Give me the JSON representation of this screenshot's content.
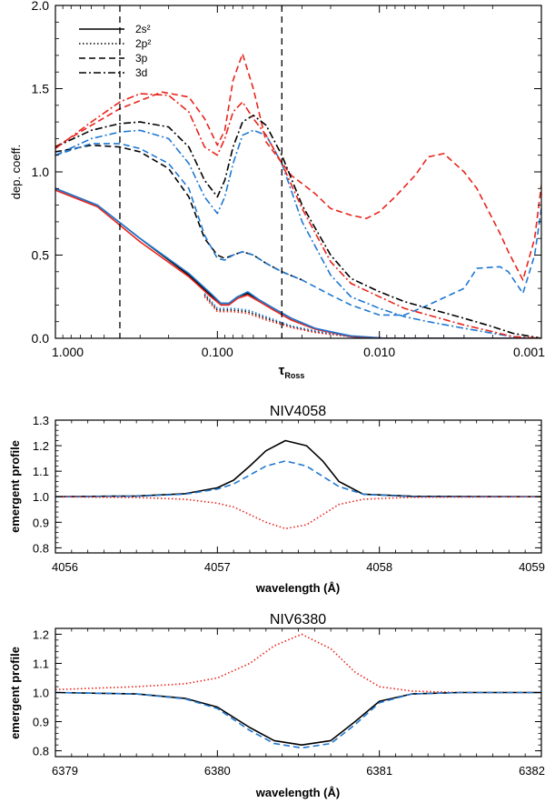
{
  "colors": {
    "black": "#000000",
    "red": "#e8241c",
    "blue": "#1f78d1",
    "axis": "#000000"
  },
  "chart_data": [
    {
      "type": "line",
      "title": "",
      "xlabel": "τ",
      "xlabel_sub": "Ross",
      "ylabel": "dep. coeff.",
      "xscale": "log",
      "xlim": [
        1.0,
        0.001
      ],
      "ylim": [
        0.0,
        2.0
      ],
      "xticks": [
        1.0,
        0.1,
        0.01,
        0.001
      ],
      "xtick_labels": [
        "1.000",
        "0.100",
        "0.010",
        "0.001"
      ],
      "yticks": [
        0.0,
        0.5,
        1.0,
        1.5,
        2.0
      ],
      "ytick_labels": [
        "0.0",
        "0.5",
        "1.0",
        "1.5",
        "2.0"
      ],
      "vlines": [
        0.4,
        0.04
      ],
      "legend": {
        "position": "top-left",
        "entries": [
          {
            "label": "2s²",
            "dash": "solid"
          },
          {
            "label": "2p²",
            "dash": "dotted"
          },
          {
            "label": "3p",
            "dash": "dashed"
          },
          {
            "label": "3d",
            "dash": "dashdot"
          }
        ]
      },
      "series": [
        {
          "name": "2s2 black",
          "color": "black",
          "dash": "solid",
          "x": [
            1,
            0.55,
            0.3,
            0.15,
            0.11,
            0.095,
            0.085,
            0.075,
            0.065,
            0.055,
            0.045,
            0.035,
            0.025,
            0.015,
            0.009,
            0.003,
            0.001
          ],
          "y": [
            0.9,
            0.8,
            0.6,
            0.38,
            0.26,
            0.21,
            0.21,
            0.25,
            0.27,
            0.23,
            0.18,
            0.12,
            0.06,
            0.01,
            0.0,
            0.0,
            0.0
          ]
        },
        {
          "name": "2s2 red",
          "color": "red",
          "dash": "solid",
          "x": [
            1,
            0.55,
            0.3,
            0.15,
            0.11,
            0.095,
            0.085,
            0.075,
            0.065,
            0.055,
            0.045,
            0.035,
            0.025,
            0.015,
            0.009,
            0.003,
            0.001
          ],
          "y": [
            0.89,
            0.79,
            0.58,
            0.37,
            0.25,
            0.2,
            0.2,
            0.24,
            0.26,
            0.22,
            0.17,
            0.11,
            0.055,
            0.01,
            0.0,
            0.0,
            0.0
          ]
        },
        {
          "name": "2s2 blue",
          "color": "blue",
          "dash": "solid",
          "x": [
            1,
            0.55,
            0.3,
            0.15,
            0.11,
            0.095,
            0.085,
            0.075,
            0.065,
            0.055,
            0.045,
            0.035,
            0.025,
            0.015,
            0.009,
            0.003,
            0.001
          ],
          "y": [
            0.9,
            0.8,
            0.6,
            0.39,
            0.27,
            0.21,
            0.21,
            0.25,
            0.28,
            0.23,
            0.18,
            0.12,
            0.06,
            0.015,
            0.0,
            0.0,
            0.0
          ]
        },
        {
          "name": "2p2 black",
          "color": "black",
          "dash": "dotted",
          "x": [
            0.12,
            0.1,
            0.08,
            0.065,
            0.05,
            0.035,
            0.025,
            0.015,
            0.009,
            0.003
          ],
          "y": [
            0.26,
            0.17,
            0.17,
            0.16,
            0.12,
            0.07,
            0.04,
            0.01,
            0.0,
            0.0
          ]
        },
        {
          "name": "2p2 red",
          "color": "red",
          "dash": "dotted",
          "x": [
            0.12,
            0.1,
            0.08,
            0.065,
            0.05,
            0.035,
            0.025,
            0.015,
            0.009,
            0.003
          ],
          "y": [
            0.25,
            0.16,
            0.16,
            0.15,
            0.11,
            0.065,
            0.035,
            0.01,
            0.0,
            0.0
          ]
        },
        {
          "name": "2p2 blue",
          "color": "blue",
          "dash": "dotted",
          "x": [
            0.12,
            0.1,
            0.08,
            0.065,
            0.05,
            0.035,
            0.025,
            0.015,
            0.009,
            0.003
          ],
          "y": [
            0.27,
            0.18,
            0.18,
            0.17,
            0.13,
            0.075,
            0.045,
            0.01,
            0.0,
            0.0
          ]
        },
        {
          "name": "3p black",
          "color": "black",
          "dash": "dashed",
          "x": [
            1,
            0.6,
            0.4,
            0.3,
            0.2,
            0.15,
            0.12,
            0.1,
            0.09,
            0.08,
            0.07,
            0.06,
            0.05,
            0.04,
            0.03
          ],
          "y": [
            1.12,
            1.16,
            1.15,
            1.12,
            1.02,
            0.85,
            0.6,
            0.5,
            0.48,
            0.5,
            0.52,
            0.5,
            0.45,
            0.4,
            0.35
          ]
        },
        {
          "name": "3p blue",
          "color": "blue",
          "dash": "dashed",
          "x": [
            1,
            0.6,
            0.4,
            0.3,
            0.2,
            0.15,
            0.12,
            0.1,
            0.09,
            0.08,
            0.07,
            0.06,
            0.05,
            0.04,
            0.03,
            0.02,
            0.015,
            0.01,
            0.007,
            0.005,
            0.003,
            0.0025,
            0.0018,
            0.0016,
            0.0013,
            0.0011,
            0.001
          ],
          "y": [
            1.1,
            1.17,
            1.17,
            1.14,
            1.05,
            0.9,
            0.62,
            0.48,
            0.47,
            0.5,
            0.52,
            0.5,
            0.45,
            0.4,
            0.35,
            0.26,
            0.2,
            0.14,
            0.14,
            0.2,
            0.3,
            0.42,
            0.43,
            0.4,
            0.27,
            0.5,
            0.78
          ]
        },
        {
          "name": "3p red",
          "color": "red",
          "dash": "dashed",
          "x": [
            1,
            0.6,
            0.4,
            0.22,
            0.15,
            0.12,
            0.1,
            0.09,
            0.08,
            0.07,
            0.06,
            0.05,
            0.035,
            0.025,
            0.02,
            0.015,
            0.012,
            0.01,
            0.008,
            0.006,
            0.005,
            0.004,
            0.003,
            0.0025,
            0.0018,
            0.0016,
            0.0013,
            0.0011,
            0.001
          ],
          "y": [
            1.15,
            1.28,
            1.38,
            1.48,
            1.45,
            1.32,
            1.16,
            1.25,
            1.55,
            1.71,
            1.5,
            1.18,
            0.98,
            0.87,
            0.78,
            0.74,
            0.72,
            0.76,
            0.85,
            0.98,
            1.09,
            1.11,
            1.0,
            0.9,
            0.63,
            0.52,
            0.35,
            0.6,
            0.92
          ]
        },
        {
          "name": "3d black",
          "color": "black",
          "dash": "dashdot",
          "x": [
            1,
            0.6,
            0.4,
            0.3,
            0.2,
            0.15,
            0.12,
            0.1,
            0.09,
            0.08,
            0.07,
            0.06,
            0.05,
            0.04,
            0.03,
            0.02,
            0.015,
            0.01,
            0.007,
            0.005,
            0.003,
            0.002,
            0.0015,
            0.001
          ],
          "y": [
            1.15,
            1.25,
            1.29,
            1.3,
            1.27,
            1.15,
            0.95,
            0.85,
            0.95,
            1.15,
            1.3,
            1.34,
            1.28,
            1.1,
            0.8,
            0.5,
            0.36,
            0.28,
            0.22,
            0.18,
            0.12,
            0.07,
            0.03,
            0.0
          ]
        },
        {
          "name": "3d blue",
          "color": "blue",
          "dash": "dashdot",
          "x": [
            1,
            0.6,
            0.4,
            0.3,
            0.2,
            0.15,
            0.12,
            0.1,
            0.09,
            0.08,
            0.07,
            0.06,
            0.05,
            0.04,
            0.03,
            0.02,
            0.015,
            0.01,
            0.007,
            0.005,
            0.003,
            0.002,
            0.0015,
            0.001
          ],
          "y": [
            1.1,
            1.2,
            1.24,
            1.25,
            1.2,
            1.05,
            0.85,
            0.75,
            0.85,
            1.05,
            1.22,
            1.25,
            1.22,
            1.05,
            0.7,
            0.38,
            0.25,
            0.18,
            0.13,
            0.1,
            0.06,
            0.03,
            0.01,
            0.0
          ]
        },
        {
          "name": "3d red",
          "color": "red",
          "dash": "dashdot",
          "x": [
            1,
            0.6,
            0.4,
            0.3,
            0.2,
            0.15,
            0.12,
            0.1,
            0.09,
            0.08,
            0.07,
            0.06,
            0.05,
            0.04,
            0.03,
            0.02,
            0.015,
            0.01,
            0.007,
            0.005,
            0.003,
            0.002,
            0.0015,
            0.001
          ],
          "y": [
            1.14,
            1.3,
            1.42,
            1.47,
            1.46,
            1.36,
            1.15,
            1.1,
            1.2,
            1.36,
            1.42,
            1.32,
            1.22,
            1.05,
            0.78,
            0.46,
            0.33,
            0.25,
            0.18,
            0.14,
            0.08,
            0.04,
            0.01,
            0.0
          ]
        }
      ]
    },
    {
      "type": "line",
      "title": "NIV4058",
      "xlabel": "wavelength (Å)",
      "ylabel": "emergent profile",
      "xlim": [
        4056,
        4059
      ],
      "ylim": [
        0.78,
        1.3
      ],
      "xticks": [
        4056,
        4057,
        4058,
        4059
      ],
      "xtick_labels": [
        "4056",
        "4057",
        "4058",
        "4059"
      ],
      "yticks": [
        0.8,
        0.9,
        1.0,
        1.1,
        1.2,
        1.3
      ],
      "ytick_labels": [
        "0.8",
        "0.9",
        "1.0",
        "1.1",
        "1.2",
        "1.3"
      ],
      "series": [
        {
          "name": "2s2 black",
          "color": "black",
          "dash": "solid",
          "x": [
            4056.0,
            4056.5,
            4056.8,
            4057.0,
            4057.1,
            4057.2,
            4057.3,
            4057.42,
            4057.55,
            4057.65,
            4057.75,
            4057.9,
            4058.2,
            4059.0
          ],
          "y": [
            1.0,
            1.003,
            1.012,
            1.035,
            1.065,
            1.12,
            1.18,
            1.22,
            1.2,
            1.14,
            1.06,
            1.01,
            1.002,
            1.0
          ]
        },
        {
          "name": "3p blue",
          "color": "blue",
          "dash": "dashed",
          "x": [
            4056.0,
            4056.5,
            4056.8,
            4057.0,
            4057.1,
            4057.2,
            4057.3,
            4057.42,
            4057.55,
            4057.65,
            4057.75,
            4057.9,
            4058.2,
            4059.0
          ],
          "y": [
            1.0,
            1.002,
            1.01,
            1.03,
            1.05,
            1.085,
            1.12,
            1.14,
            1.12,
            1.08,
            1.04,
            1.01,
            1.0,
            1.0
          ]
        },
        {
          "name": "2p2 red",
          "color": "red",
          "dash": "dotted",
          "x": [
            4056.0,
            4056.5,
            4056.8,
            4057.0,
            4057.1,
            4057.2,
            4057.3,
            4057.42,
            4057.55,
            4057.65,
            4057.75,
            4057.9,
            4058.2,
            4059.0
          ],
          "y": [
            1.0,
            0.997,
            0.99,
            0.975,
            0.96,
            0.93,
            0.9,
            0.875,
            0.89,
            0.93,
            0.97,
            0.99,
            0.998,
            1.0
          ]
        }
      ]
    },
    {
      "type": "line",
      "title": "NIV6380",
      "xlabel": "wavelength (Å)",
      "ylabel": "emergent profile",
      "xlim": [
        6379,
        6382
      ],
      "ylim": [
        0.78,
        1.22
      ],
      "xticks": [
        6379,
        6380,
        6381,
        6382
      ],
      "xtick_labels": [
        "6379",
        "6380",
        "6381",
        "6382"
      ],
      "yticks": [
        0.8,
        0.9,
        1.0,
        1.1,
        1.2
      ],
      "ytick_labels": [
        "0.8",
        "0.9",
        "1.0",
        "1.1",
        "1.2"
      ],
      "series": [
        {
          "name": "2p2 red",
          "color": "red",
          "dash": "dotted",
          "x": [
            6379.0,
            6379.5,
            6379.8,
            6380.0,
            6380.2,
            6380.35,
            6380.52,
            6380.7,
            6380.85,
            6381.0,
            6381.2,
            6381.5,
            6382.0
          ],
          "y": [
            1.01,
            1.02,
            1.03,
            1.05,
            1.1,
            1.16,
            1.2,
            1.15,
            1.07,
            1.02,
            1.005,
            1.0,
            1.0
          ]
        },
        {
          "name": "2s2 black",
          "color": "black",
          "dash": "solid",
          "x": [
            6379.0,
            6379.5,
            6379.8,
            6380.0,
            6380.2,
            6380.35,
            6380.52,
            6380.7,
            6380.85,
            6381.0,
            6381.2,
            6381.5,
            6382.0
          ],
          "y": [
            1.0,
            0.995,
            0.98,
            0.95,
            0.88,
            0.835,
            0.82,
            0.835,
            0.9,
            0.97,
            0.995,
            1.0,
            1.0
          ]
        },
        {
          "name": "3p blue",
          "color": "blue",
          "dash": "dashed",
          "x": [
            6379.0,
            6379.5,
            6379.8,
            6380.0,
            6380.2,
            6380.35,
            6380.52,
            6380.7,
            6380.85,
            6381.0,
            6381.2,
            6381.5,
            6382.0
          ],
          "y": [
            1.0,
            0.995,
            0.978,
            0.945,
            0.87,
            0.825,
            0.81,
            0.825,
            0.89,
            0.965,
            0.995,
            1.0,
            1.0
          ]
        }
      ]
    }
  ]
}
